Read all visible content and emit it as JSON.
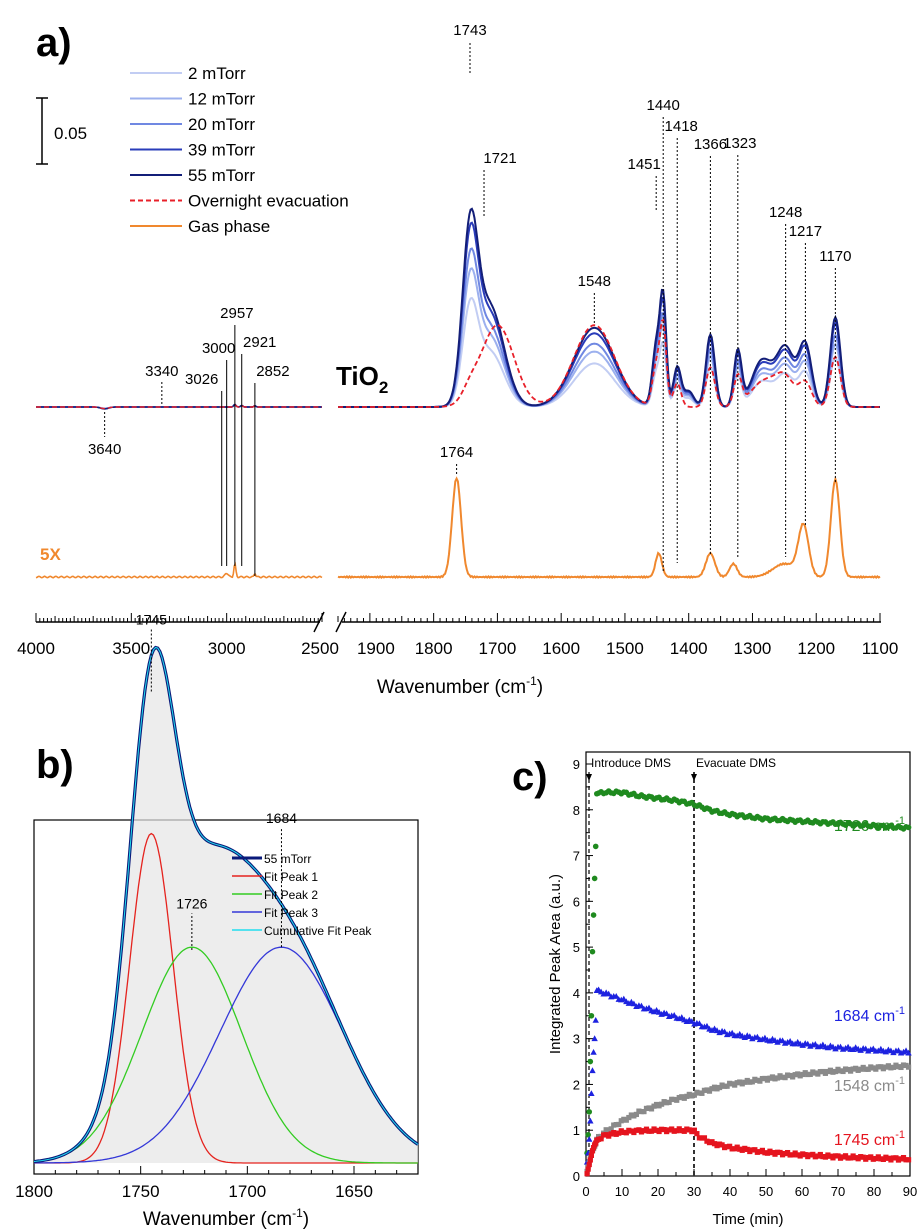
{
  "panels": {
    "a": {
      "label": "a)",
      "scale_bar_label": "0.05",
      "sample_label": "TiO",
      "sample_sub": "2",
      "scale_factor_label": "5X",
      "xlabel_main": "Wavenumber (cm",
      "xlabel_sup": "-1",
      "xlabel_close": ")",
      "legend": [
        {
          "label": "2 mTorr",
          "color": "#c2cdf3",
          "dash": false
        },
        {
          "label": "12 mTorr",
          "color": "#9cb0ee",
          "dash": false
        },
        {
          "label": "20 mTorr",
          "color": "#7088e2",
          "dash": false
        },
        {
          "label": "39 mTorr",
          "color": "#2a3cba",
          "dash": false
        },
        {
          "label": "55 mTorr",
          "color": "#131e78",
          "dash": false
        },
        {
          "label": "Overnight evacuation",
          "color": "#e8202a",
          "dash": true
        },
        {
          "label": "Gas phase",
          "color": "#f0882e",
          "dash": false
        }
      ],
      "tick_labels": [
        "4000",
        "3500",
        "3000",
        "2500",
        "1900",
        "1800",
        "1700",
        "1600",
        "1500",
        "1400",
        "1300",
        "1200",
        "1100"
      ]
    },
    "b": {
      "label": "b)",
      "xlabel_main": "Wavenumber (cm",
      "xlabel_sup": "-1",
      "xlabel_close": ")",
      "legend": [
        {
          "label": "55 mTorr",
          "color": "#0a1a7a"
        },
        {
          "label": "Fit Peak 1",
          "color": "#e5231e"
        },
        {
          "label": "Fit Peak 2",
          "color": "#33cc22"
        },
        {
          "label": "Fit Peak 3",
          "color": "#3438d8"
        },
        {
          "label": "Cumulative Fit Peak",
          "color": "#22ddee"
        }
      ],
      "tick_labels": [
        "1800",
        "1750",
        "1700",
        "1650"
      ]
    },
    "c": {
      "label": "c)",
      "event_1": "Introduce DMS",
      "event_2": "Evacuate DMS",
      "xlabel": "Time (min)",
      "ylabel": "Integrated Peak Area (a.u.)",
      "x_tick_labels": [
        "0",
        "10",
        "20",
        "30",
        "40",
        "50",
        "60",
        "70",
        "80",
        "90"
      ],
      "y_tick_labels": [
        "0",
        "1",
        "2",
        "3",
        "4",
        "5",
        "6",
        "7",
        "8",
        "9"
      ],
      "series_labels": [
        {
          "num": "1726 cm",
          "sup": "-1",
          "color": "#1f8a1f"
        },
        {
          "num": "1684 cm",
          "sup": "-1",
          "color": "#1d22e0"
        },
        {
          "num": "1548 cm",
          "sup": "-1",
          "color": "#8a8a8a"
        },
        {
          "num": "1745 cm",
          "sup": "-1",
          "color": "#e5141e"
        }
      ]
    }
  },
  "chart_data": [
    {
      "panel": "a",
      "type": "line",
      "xlabel": "Wavenumber (cm-1)",
      "x_break": [
        2500,
        1950
      ],
      "xlim_left": [
        4000,
        2500
      ],
      "xlim_right": [
        1950,
        1100
      ],
      "scale_bar_absorbance": 0.05,
      "series": [
        {
          "name": "2 mTorr",
          "scale": 0.55
        },
        {
          "name": "12 mTorr",
          "scale": 0.7
        },
        {
          "name": "20 mTorr",
          "scale": 0.8
        },
        {
          "name": "39 mTorr",
          "scale": 0.93
        },
        {
          "name": "55 mTorr",
          "scale": 1.0
        },
        {
          "name": "Overnight evacuation"
        },
        {
          "name": "Gas phase",
          "multiplier": "5X"
        }
      ],
      "peaks_55mTorr": [
        {
          "x": 1743,
          "h": 0.165
        },
        {
          "x": 1721,
          "h": 0.108
        },
        {
          "x": 1548,
          "h": 0.042
        },
        {
          "x": 1451,
          "h": 0.115
        },
        {
          "x": 1440,
          "h": 0.115
        },
        {
          "x": 1418,
          "h": 0.064
        },
        {
          "x": 1366,
          "h": 0.076
        },
        {
          "x": 1323,
          "h": 0.045
        },
        {
          "x": 1248,
          "h": 0.059
        },
        {
          "x": 1217,
          "h": 0.061
        },
        {
          "x": 1170,
          "h": 0.07
        }
      ],
      "annotations": [
        "1743",
        "1721",
        "1548",
        "1451",
        "1440",
        "1418",
        "1366",
        "1323",
        "1248",
        "1217",
        "1170",
        "1764",
        "3640",
        "3340",
        "3026",
        "3000",
        "2957",
        "2921",
        "2852"
      ]
    },
    {
      "panel": "b",
      "type": "line",
      "xlabel": "Wavenumber (cm-1)",
      "xlim": [
        1800,
        1620
      ],
      "series": [
        {
          "name": "55 mTorr"
        },
        {
          "name": "Fit Peak 1",
          "center": 1745,
          "height": 0.58,
          "fwhm": 24
        },
        {
          "name": "Fit Peak 2",
          "center": 1726,
          "height": 0.38,
          "fwhm": 55
        },
        {
          "name": "Fit Peak 3",
          "center": 1684,
          "height": 0.38,
          "fwhm": 68
        },
        {
          "name": "Cumulative Fit Peak"
        }
      ],
      "annotations": [
        "1745",
        "1726",
        "1684"
      ]
    },
    {
      "panel": "c",
      "type": "scatter",
      "xlabel": "Time (min)",
      "ylabel": "Integrated Peak Area (a.u.)",
      "xlim": [
        0,
        90
      ],
      "ylim": [
        0,
        9
      ],
      "events": [
        {
          "label": "Introduce DMS",
          "x": 0
        },
        {
          "label": "Evacuate DMS",
          "x": 30
        }
      ],
      "series": [
        {
          "name": "1726 cm-1",
          "color": "#1f8a1f",
          "marker": "circle",
          "x": [
            0.3,
            0.6,
            0.9,
            1.2,
            1.5,
            1.8,
            2.1,
            2.4,
            2.7,
            3,
            5,
            10,
            15,
            20,
            25,
            30,
            35,
            40,
            50,
            60,
            70,
            80,
            90
          ],
          "y": [
            0.5,
            0.9,
            1.4,
            2.5,
            3.5,
            4.9,
            5.7,
            6.5,
            7.2,
            8.35,
            8.38,
            8.38,
            8.3,
            8.25,
            8.2,
            8.12,
            7.98,
            7.9,
            7.8,
            7.75,
            7.7,
            7.65,
            7.6
          ]
        },
        {
          "name": "1684 cm-1",
          "color": "#1d22e0",
          "marker": "triangle",
          "x": [
            0.3,
            0.6,
            0.9,
            1.2,
            1.5,
            1.8,
            2.1,
            2.4,
            2.7,
            3,
            5,
            10,
            15,
            20,
            25,
            30,
            35,
            40,
            50,
            60,
            70,
            80,
            90
          ],
          "y": [
            0.3,
            0.5,
            0.8,
            1.2,
            1.8,
            2.3,
            2.7,
            3.0,
            3.4,
            4.05,
            4.0,
            3.85,
            3.7,
            3.58,
            3.47,
            3.35,
            3.2,
            3.1,
            2.98,
            2.88,
            2.8,
            2.75,
            2.7
          ]
        },
        {
          "name": "1548 cm-1",
          "color": "#8a8a8a",
          "marker": "square",
          "x": [
            0.3,
            0.6,
            0.9,
            1.2,
            1.5,
            1.8,
            2.1,
            2.4,
            2.7,
            3,
            5,
            10,
            15,
            20,
            25,
            30,
            35,
            40,
            50,
            60,
            70,
            80,
            90
          ],
          "y": [
            0.1,
            0.2,
            0.3,
            0.4,
            0.45,
            0.55,
            0.6,
            0.65,
            0.7,
            0.8,
            0.95,
            1.2,
            1.4,
            1.55,
            1.68,
            1.78,
            1.9,
            2.0,
            2.12,
            2.22,
            2.3,
            2.36,
            2.41
          ]
        },
        {
          "name": "1745 cm-1",
          "color": "#e5141e",
          "marker": "square",
          "x": [
            0.3,
            0.6,
            0.9,
            1.2,
            1.5,
            1.8,
            2.1,
            2.4,
            2.7,
            3,
            5,
            10,
            15,
            20,
            25,
            30,
            31,
            35,
            40,
            50,
            60,
            70,
            80,
            90
          ],
          "y": [
            0.05,
            0.15,
            0.25,
            0.35,
            0.45,
            0.55,
            0.62,
            0.68,
            0.72,
            0.78,
            0.88,
            0.96,
            0.99,
            1.0,
            1.0,
            1.0,
            0.88,
            0.72,
            0.62,
            0.52,
            0.46,
            0.42,
            0.39,
            0.37
          ]
        }
      ]
    }
  ]
}
